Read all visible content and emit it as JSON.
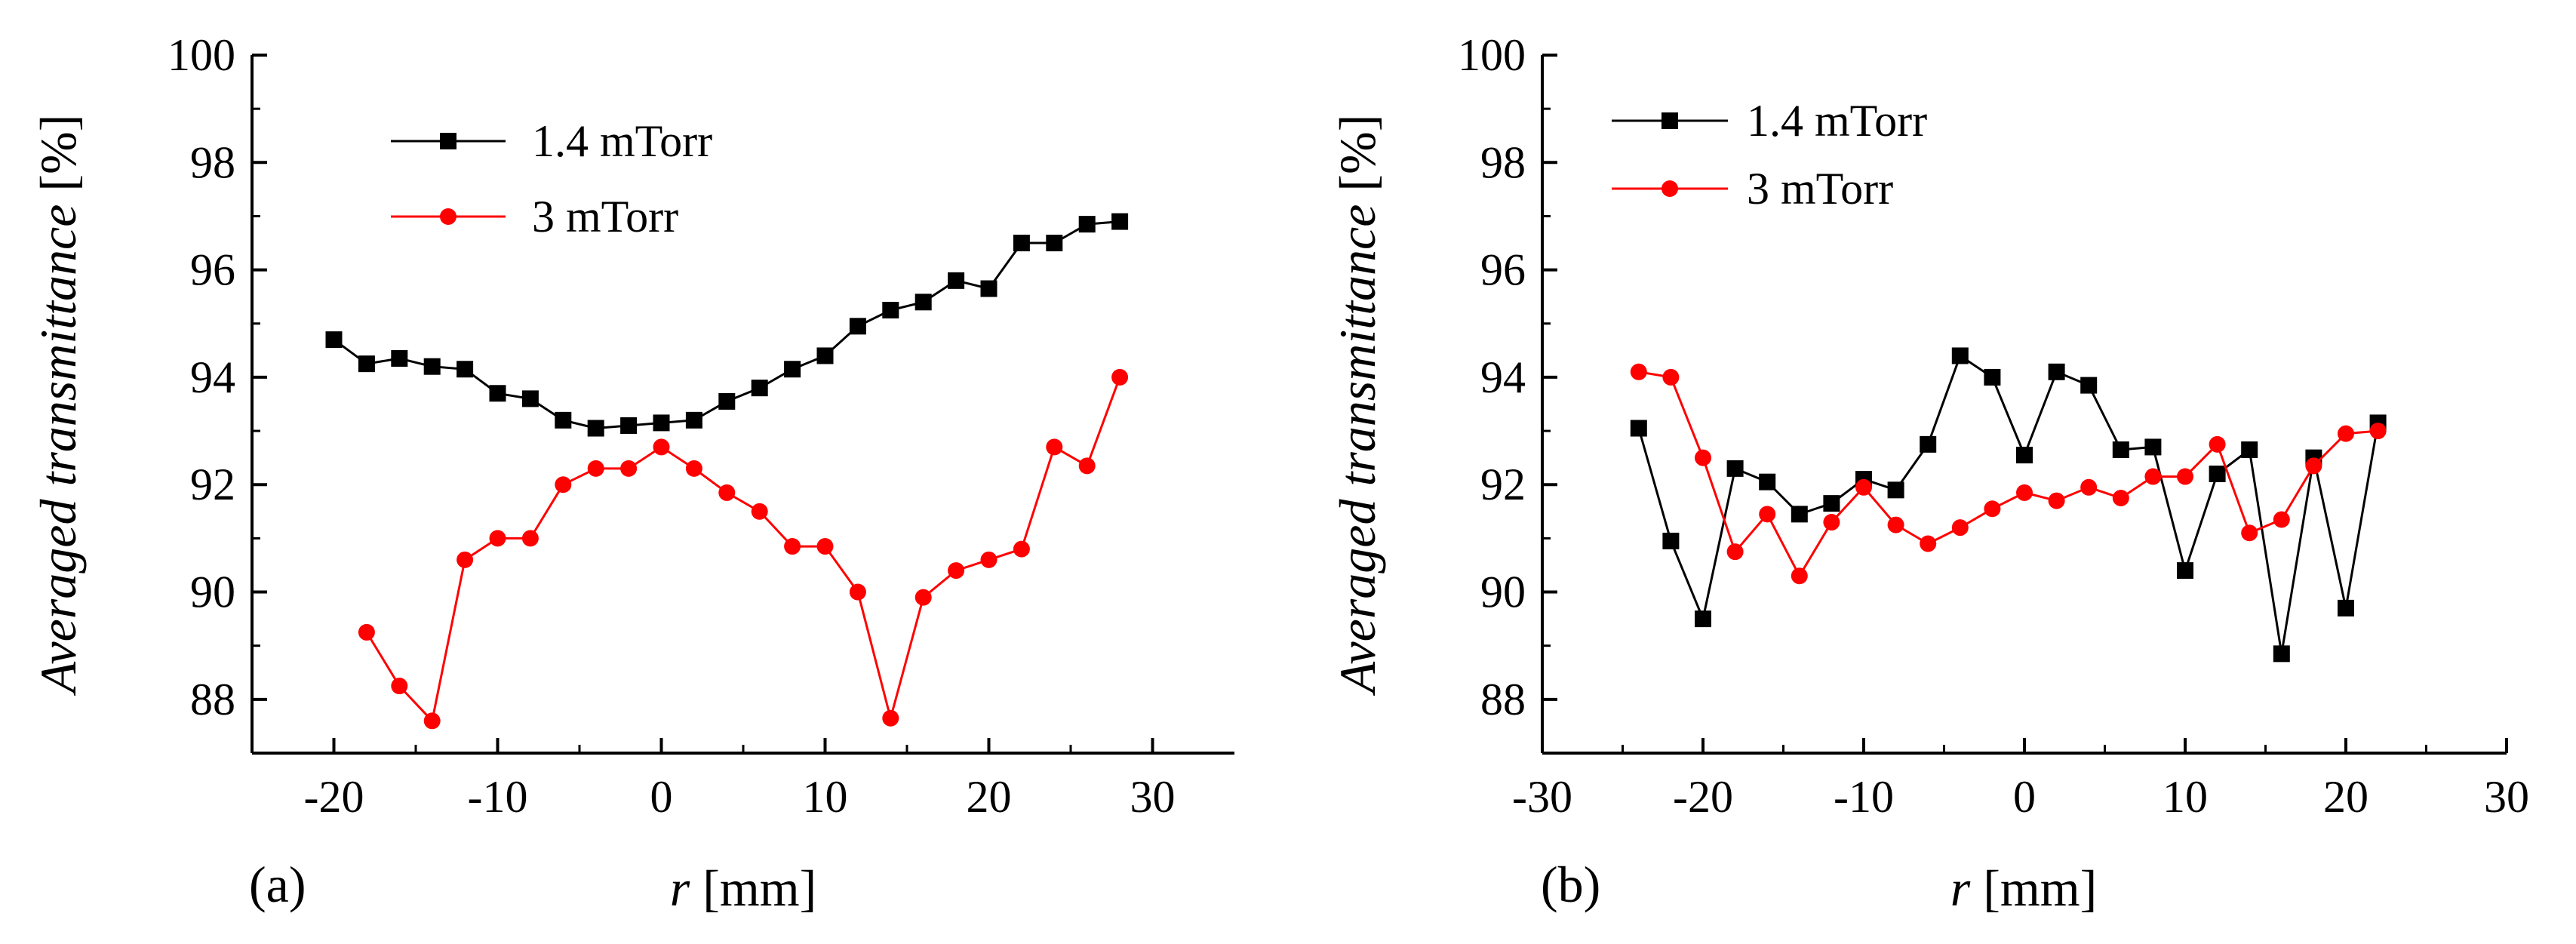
{
  "chart_data": [
    {
      "type": "line",
      "panel_label": "(a)",
      "xlabel_italic": "r",
      "xlabel_unit": "[mm]",
      "ylabel_italic": "Averaged transmittance",
      "ylabel_unit": "[%]",
      "xlim": [
        -25,
        35
      ],
      "ylim": [
        87,
        100
      ],
      "xticks": [
        -20,
        -10,
        0,
        10,
        20,
        30
      ],
      "yticks": [
        88,
        90,
        92,
        94,
        96,
        98,
        100
      ],
      "legend_position": "top-left",
      "series": [
        {
          "name": "1.4 mTorr",
          "color": "#000000",
          "marker": "square",
          "x": [
            -20,
            -18,
            -16,
            -14,
            -12,
            -10,
            -8,
            -6,
            -4,
            -2,
            0,
            2,
            4,
            6,
            8,
            10,
            12,
            14,
            16,
            18,
            20,
            22,
            24,
            26,
            28
          ],
          "y": [
            94.7,
            94.25,
            94.35,
            94.2,
            94.15,
            93.7,
            93.6,
            93.2,
            93.05,
            93.1,
            93.15,
            93.2,
            93.55,
            93.8,
            94.15,
            94.4,
            94.95,
            95.25,
            95.4,
            95.8,
            95.65,
            96.5,
            96.5,
            96.85,
            96.9
          ]
        },
        {
          "name": "3 mTorr",
          "color": "#ff0000",
          "marker": "circle",
          "x": [
            -18,
            -16,
            -14,
            -12,
            -10,
            -8,
            -6,
            -4,
            -2,
            0,
            2,
            4,
            6,
            8,
            10,
            12,
            14,
            16,
            18,
            20,
            22,
            24,
            26,
            28
          ],
          "y": [
            89.25,
            88.25,
            87.6,
            90.6,
            91.0,
            91.0,
            92.0,
            92.3,
            92.3,
            92.7,
            92.3,
            91.85,
            91.5,
            90.85,
            90.85,
            90.0,
            87.65,
            89.9,
            90.4,
            90.6,
            90.8,
            92.7,
            92.35,
            94.0
          ]
        }
      ]
    },
    {
      "type": "line",
      "panel_label": "(b)",
      "xlabel_italic": "r",
      "xlabel_unit": "[mm]",
      "ylabel_italic": "Averaged transmittance",
      "ylabel_unit": "[%]",
      "xlim": [
        -30,
        30
      ],
      "ylim": [
        87,
        100
      ],
      "xticks": [
        -30,
        -20,
        -10,
        0,
        10,
        20,
        30
      ],
      "yticks": [
        88,
        90,
        92,
        94,
        96,
        98,
        100
      ],
      "legend_position": "top-left",
      "series": [
        {
          "name": "1.4 mTorr",
          "color": "#000000",
          "marker": "square",
          "x": [
            -24,
            -22,
            -20,
            -18,
            -16,
            -14,
            -12,
            -10,
            -8,
            -6,
            -4,
            -2,
            0,
            2,
            4,
            6,
            8,
            10,
            12,
            14,
            16,
            18,
            20,
            22
          ],
          "y": [
            93.05,
            90.95,
            89.5,
            92.3,
            92.05,
            91.45,
            91.65,
            92.1,
            91.9,
            92.75,
            94.4,
            94.0,
            92.55,
            94.1,
            93.85,
            92.65,
            92.7,
            90.4,
            92.2,
            92.65,
            88.85,
            92.5,
            89.7,
            93.15
          ]
        },
        {
          "name": "3 mTorr",
          "color": "#ff0000",
          "marker": "circle",
          "x": [
            -24,
            -22,
            -20,
            -18,
            -16,
            -14,
            -12,
            -10,
            -8,
            -6,
            -4,
            -2,
            0,
            2,
            4,
            6,
            8,
            10,
            12,
            14,
            16,
            18,
            20,
            22
          ],
          "y": [
            94.1,
            94.0,
            92.5,
            90.75,
            91.45,
            90.3,
            91.3,
            91.95,
            91.25,
            90.9,
            91.2,
            91.55,
            91.85,
            91.7,
            91.95,
            91.75,
            92.15,
            92.15,
            92.75,
            91.1,
            91.35,
            92.35,
            92.95,
            93.0
          ]
        }
      ]
    }
  ]
}
